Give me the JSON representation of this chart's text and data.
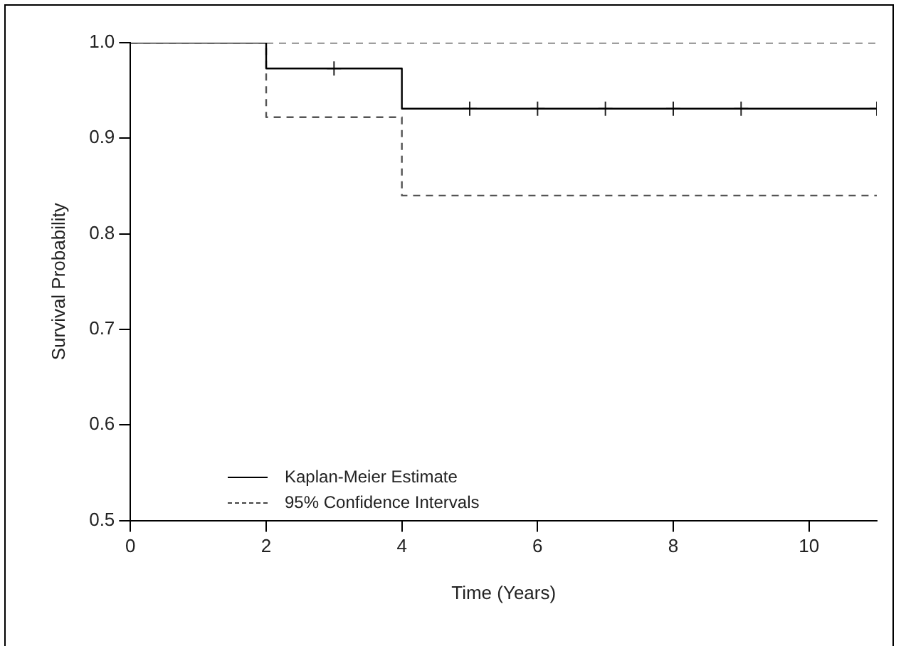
{
  "chart_data": {
    "type": "step",
    "xlabel": "Time (Years)",
    "ylabel": "Survival Probability",
    "xlim": [
      0,
      11
    ],
    "xticks": [
      0,
      2,
      4,
      6,
      8,
      10
    ],
    "ylim": [
      0.5,
      1.0
    ],
    "yticks": [
      {
        "value": 0.5,
        "label": "0.5"
      },
      {
        "value": 0.6,
        "label": "0.6"
      },
      {
        "value": 0.7,
        "label": "0.7"
      },
      {
        "value": 0.8,
        "label": "0.8"
      },
      {
        "value": 0.9,
        "label": "0.9"
      },
      {
        "value": 1.0,
        "label": "1.0"
      }
    ],
    "grid": false,
    "legend": "bottom left",
    "series": [
      {
        "name": "Kaplan-Meier Estimate",
        "color": "#000000",
        "x": [
          0,
          2,
          4,
          11
        ],
        "values": [
          1.0,
          0.973,
          0.931,
          0.931
        ],
        "line_style": "solid"
      },
      {
        "name": "95% Confidence Intervals",
        "color": "#444444",
        "x": [
          2,
          11
        ],
        "values": [
          1.0,
          1.0
        ],
        "line_style": "dashed"
      },
      {
        "color": "#555555",
        "x": [
          0,
          2,
          4,
          11
        ],
        "values": [
          1.0,
          0.922,
          0.84,
          0.84
        ],
        "line_style": "dashed"
      },
      {
        "type": "scatter",
        "color": "#222222",
        "x": [
          3,
          5,
          6,
          7,
          8,
          9,
          11
        ],
        "values": [
          0.973,
          0.931,
          0.931,
          0.931,
          0.931,
          0.931,
          0.931
        ],
        "marker": "cross"
      }
    ]
  }
}
